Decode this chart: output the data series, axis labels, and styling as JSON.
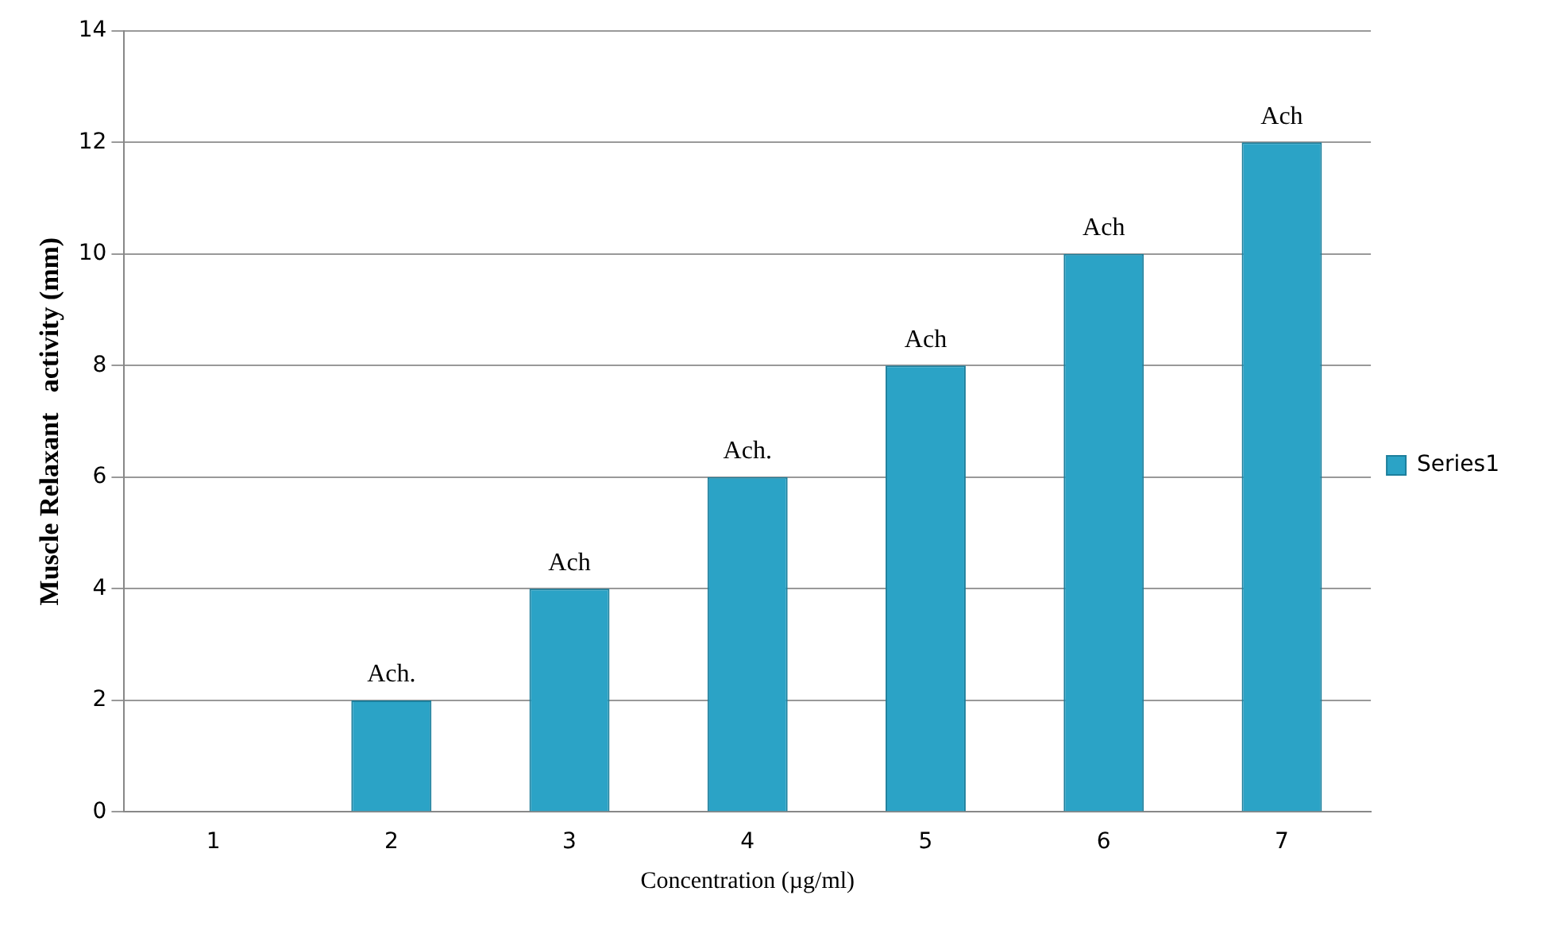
{
  "chart_data": {
    "type": "bar",
    "xlabel": "Concentration (µg/ml)",
    "ylabel": "Muscle Relaxant   activity (mm)",
    "categories": [
      "1",
      "2",
      "3",
      "4",
      "5",
      "6",
      "7"
    ],
    "series": [
      {
        "name": "Series1",
        "color": "#2ba3c6",
        "values": [
          0,
          2,
          4,
          6,
          8,
          10,
          12
        ],
        "value_labels": [
          null,
          "Ach.",
          "Ach",
          "Ach.",
          "Ach",
          "Ach",
          "Ach"
        ]
      }
    ],
    "ylim": [
      0,
      14
    ],
    "yticks": [
      0,
      2,
      4,
      6,
      8,
      10,
      12,
      14
    ],
    "grid": "y",
    "legend": "right"
  }
}
